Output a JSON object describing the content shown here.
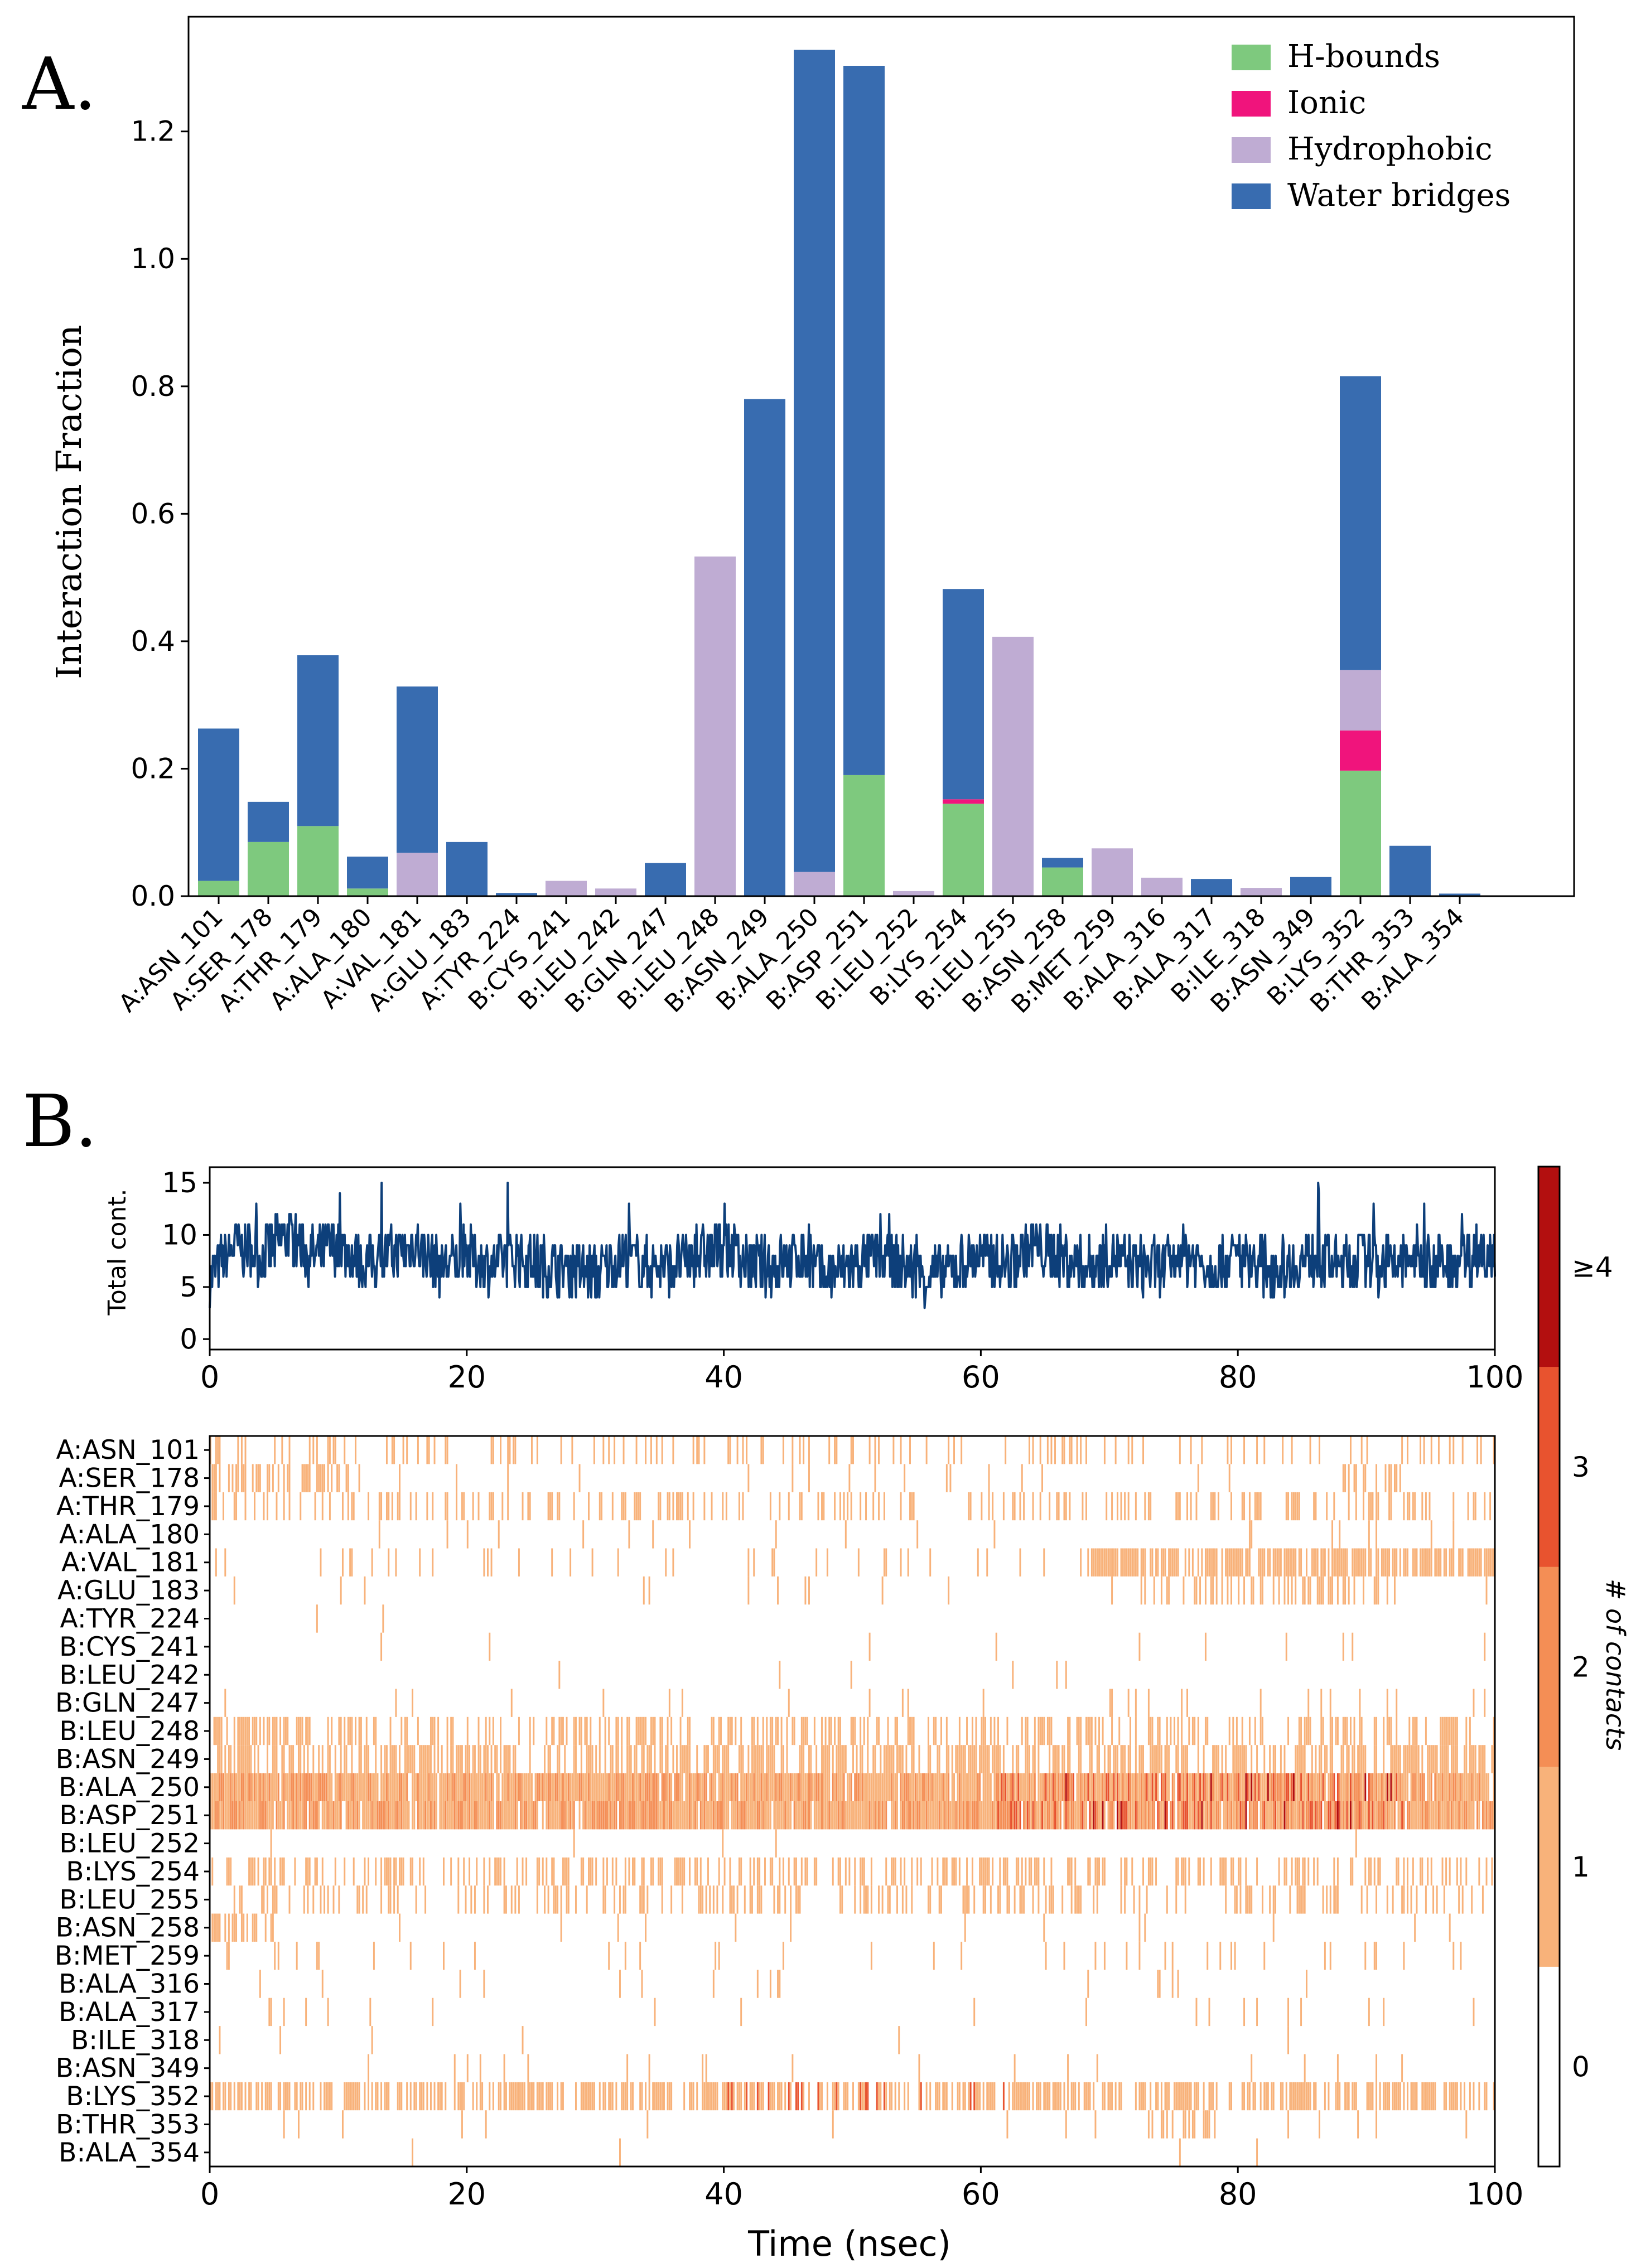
{
  "panel_labels": {
    "a": "A.",
    "b": "B."
  },
  "colors": {
    "hbonds": "#7ec97e",
    "ionic": "#f0147c",
    "hydrophobic": "#bfacd3",
    "water": "#386cb0",
    "timeline": "#0d3f7a",
    "frame": "#000000"
  },
  "chart_data": [
    {
      "type": "bar",
      "title": "",
      "ylabel": "Interaction Fraction",
      "xlabel": "",
      "ylim": [
        0,
        1.38
      ],
      "yticks": [
        0.0,
        0.2,
        0.4,
        0.6,
        0.8,
        1.0,
        1.2
      ],
      "ytick_labels": [
        "0.0",
        "0.2",
        "0.4",
        "0.6",
        "0.8",
        "1.0",
        "1.2"
      ],
      "legend_position": "top-right",
      "categories": [
        "A:ASN_101",
        "A:SER_178",
        "A:THR_179",
        "A:ALA_180",
        "A:VAL_181",
        "A:GLU_183",
        "A:TYR_224",
        "B:CYS_241",
        "B:LEU_242",
        "B:GLN_247",
        "B:LEU_248",
        "B:ASN_249",
        "B:ALA_250",
        "B:ASP_251",
        "B:LEU_252",
        "B:LYS_254",
        "B:LEU_255",
        "B:ASN_258",
        "B:MET_259",
        "B:ALA_316",
        "B:ALA_317",
        "B:ILE_318",
        "B:ASN_349",
        "B:LYS_352",
        "B:THR_353",
        "B:ALA_354"
      ],
      "series": [
        {
          "name": "H-bounds",
          "color_key": "hbonds",
          "values": [
            0.024,
            0.085,
            0.11,
            0.012,
            0,
            0,
            0,
            0,
            0,
            0,
            0,
            0,
            0,
            0.19,
            0,
            0.145,
            0,
            0.045,
            0,
            0,
            0,
            0,
            0,
            0.197,
            0,
            0
          ]
        },
        {
          "name": "Ionic",
          "color_key": "ionic",
          "values": [
            0,
            0,
            0,
            0,
            0,
            0,
            0,
            0,
            0,
            0,
            0,
            0,
            0,
            0,
            0,
            0.007,
            0,
            0,
            0,
            0,
            0,
            0,
            0,
            0.063,
            0,
            0
          ]
        },
        {
          "name": "Hydrophobic",
          "color_key": "hydrophobic",
          "values": [
            0,
            0,
            0,
            0,
            0.068,
            0,
            0,
            0.024,
            0.012,
            0,
            0.533,
            0,
            0.038,
            0,
            0.008,
            0,
            0.407,
            0,
            0.075,
            0.029,
            0,
            0.013,
            0,
            0.095,
            0,
            0
          ]
        },
        {
          "name": "Water bridges",
          "color_key": "water",
          "values": [
            0.239,
            0.063,
            0.268,
            0.05,
            0.261,
            0.085,
            0.005,
            0,
            0,
            0.052,
            0,
            0.78,
            1.29,
            1.113,
            0,
            0.33,
            0,
            0.015,
            0,
            0,
            0.027,
            0,
            0.03,
            0.461,
            0.079,
            0.004
          ]
        }
      ]
    },
    {
      "type": "line",
      "ylabel": "Total cont.",
      "xlim": [
        0,
        100
      ],
      "ylim": [
        -1,
        16.5
      ],
      "xticks": [
        0,
        20,
        40,
        60,
        80,
        100
      ],
      "xtick_labels": [
        "0",
        "20",
        "40",
        "60",
        "80",
        "100"
      ],
      "yticks": [
        0,
        5,
        10,
        15
      ],
      "ytick_labels": [
        "0",
        "5",
        "10",
        "15"
      ],
      "mean": 7.2,
      "series": [
        {
          "name": "Total contacts",
          "x": [
            0,
            2,
            4,
            6,
            8,
            10,
            12,
            14,
            16,
            18,
            20,
            22,
            24,
            26,
            28,
            30,
            32,
            34,
            36,
            38,
            40,
            42,
            44,
            46,
            48,
            50,
            52,
            54,
            56,
            58,
            60,
            62,
            64,
            66,
            68,
            70,
            72,
            74,
            76,
            78,
            80,
            82,
            84,
            86,
            88,
            90,
            92,
            94,
            96,
            98,
            100
          ],
          "y": [
            6,
            9,
            8,
            10,
            8,
            9,
            7,
            8,
            9,
            7,
            8,
            7,
            8,
            7,
            7,
            6,
            8,
            7,
            7,
            8,
            9,
            7,
            7,
            8,
            6,
            7,
            8,
            7,
            6,
            7,
            8,
            7,
            9,
            8,
            7,
            8,
            7,
            7,
            8,
            7,
            8,
            7,
            7,
            8,
            7,
            8,
            7,
            8,
            7,
            8,
            9
          ]
        }
      ]
    },
    {
      "type": "heatmap",
      "xlabel": "Time (nsec)",
      "xlim": [
        0,
        100
      ],
      "xticks": [
        0,
        20,
        40,
        60,
        80,
        100
      ],
      "xtick_labels": [
        "0",
        "20",
        "40",
        "60",
        "80",
        "100"
      ],
      "rows": [
        "A:ASN_101",
        "A:SER_178",
        "A:THR_179",
        "A:ALA_180",
        "A:VAL_181",
        "A:GLU_183",
        "A:TYR_224",
        "B:CYS_241",
        "B:LEU_242",
        "B:GLN_247",
        "B:LEU_248",
        "B:ASN_249",
        "B:ALA_250",
        "B:ASP_251",
        "B:LEU_252",
        "B:LYS_254",
        "B:LEU_255",
        "B:ASN_258",
        "B:MET_259",
        "B:ALA_316",
        "B:ALA_317",
        "B:ILE_318",
        "B:ASN_349",
        "B:LYS_352",
        "B:THR_353",
        "B:ALA_354"
      ],
      "row_density": [
        0.26,
        0.15,
        0.38,
        0.06,
        0.33,
        0.08,
        0.005,
        0.024,
        0.012,
        0.05,
        0.53,
        0.78,
        1.33,
        1.3,
        0.01,
        0.48,
        0.41,
        0.06,
        0.075,
        0.03,
        0.027,
        0.013,
        0.03,
        0.82,
        0.08,
        0.004
      ],
      "colorbar": {
        "label": "# of contacts",
        "ticks": [
          "0",
          "1",
          "2",
          "3",
          "≥4"
        ],
        "colors": [
          "#ffffff",
          "#f8b27a",
          "#f48e55",
          "#e8532f",
          "#b30f0f"
        ]
      }
    }
  ]
}
